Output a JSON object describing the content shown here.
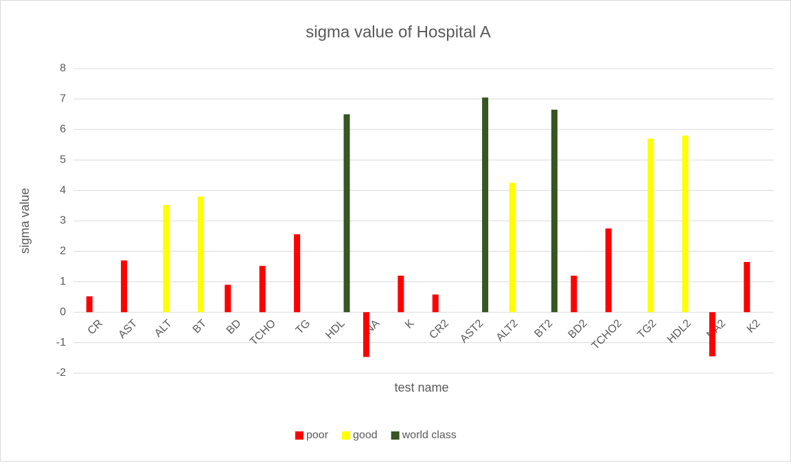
{
  "chart_data": {
    "type": "bar",
    "title": "sigma value of Hospital A",
    "x_label": "test name",
    "y_label": "sigma value",
    "categories": [
      "CR",
      "AST",
      "ALT",
      "BT",
      "BD",
      "TCHO",
      "TG",
      "HDL",
      "NA",
      "K",
      "CR2",
      "AST2",
      "ALT2",
      "BT2",
      "BD2",
      "TCHO2",
      "TG2",
      "HDL2",
      "NA2",
      "K2"
    ],
    "series": [
      {
        "name": "poor",
        "color": "#ff0000",
        "values": [
          0.52,
          1.7,
          null,
          null,
          0.9,
          1.52,
          2.56,
          null,
          -1.47,
          1.2,
          0.58,
          null,
          null,
          null,
          1.2,
          2.75,
          null,
          null,
          -1.45,
          1.65
        ]
      },
      {
        "name": "good",
        "color": "#ffff00",
        "values": [
          null,
          null,
          3.52,
          3.8,
          null,
          null,
          null,
          null,
          null,
          null,
          null,
          null,
          4.25,
          null,
          null,
          null,
          5.7,
          5.8,
          null,
          null
        ]
      },
      {
        "name": "world class",
        "color": "#375623",
        "values": [
          null,
          null,
          null,
          null,
          null,
          null,
          null,
          6.5,
          null,
          null,
          null,
          7.05,
          null,
          6.65,
          null,
          null,
          null,
          null,
          null,
          null
        ]
      }
    ],
    "ylim": [
      -2,
      8
    ],
    "yticks": [
      -2,
      -1,
      0,
      1,
      2,
      3,
      4,
      5,
      6,
      7,
      8
    ],
    "grid": true,
    "legend": "bottom"
  }
}
